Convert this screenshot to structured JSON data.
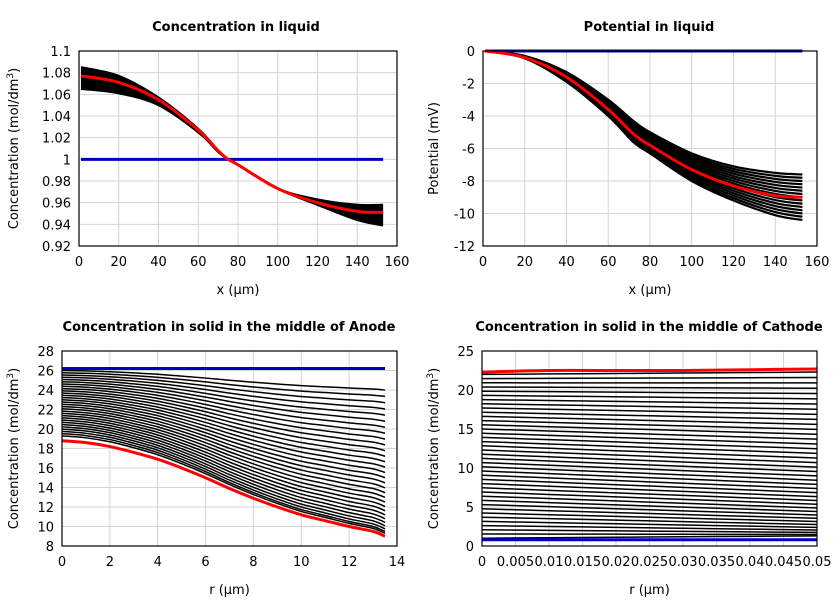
{
  "chart_data": [
    {
      "type": "line",
      "title": "Concentration in liquid",
      "xlabel": "x (µm)",
      "ylabel": {
        "main": "Concentration (mol/dm",
        "sup": "3",
        "end": ")"
      },
      "xlim": [
        0,
        160
      ],
      "ylim": [
        0.92,
        1.1
      ],
      "xticks": [
        "0",
        "20",
        "40",
        "60",
        "80",
        "100",
        "120",
        "140",
        "160"
      ],
      "yticks": [
        "0.92",
        "0.94",
        "0.96",
        "0.98",
        "1",
        "1.02",
        "1.04",
        "1.06",
        "1.08",
        "1.1"
      ],
      "xtick_values": [
        0,
        20,
        40,
        60,
        80,
        100,
        120,
        140,
        160
      ],
      "ytick_values": [
        0.92,
        0.94,
        0.96,
        0.98,
        1,
        1.02,
        1.04,
        1.06,
        1.08,
        1.1
      ],
      "grid": true,
      "x": [
        1,
        20,
        40,
        60,
        70,
        75,
        80,
        100,
        120,
        140,
        153
      ],
      "series": [
        {
          "color": "#0000c0",
          "values": [
            1,
            1,
            1,
            1,
            1,
            1,
            1,
            1,
            1,
            1,
            1
          ]
        },
        {
          "color": "#ff0000",
          "values": [
            1.077,
            1.071,
            1.055,
            1.027,
            1.008,
            1.0,
            0.995,
            0.973,
            0.96,
            0.952,
            0.951
          ]
        }
      ],
      "black_band": {
        "upper": [
          1.085,
          1.077,
          1.057,
          1.028,
          1.008,
          1.0,
          0.995,
          0.973,
          0.963,
          0.958,
          0.958
        ],
        "lower": [
          1.065,
          1.061,
          1.05,
          1.025,
          1.007,
          1.0,
          0.995,
          0.973,
          0.958,
          0.944,
          0.939
        ]
      }
    },
    {
      "type": "line",
      "title": "Potential in liquid",
      "xlabel": "x (µm)",
      "ylabel": {
        "main": "Potential (mV)",
        "sup": "",
        "end": ""
      },
      "xlim": [
        0,
        160
      ],
      "ylim": [
        -12,
        0
      ],
      "xticks": [
        "0",
        "20",
        "40",
        "60",
        "80",
        "100",
        "120",
        "140",
        "160"
      ],
      "yticks": [
        "-12",
        "-10",
        "-8",
        "-6",
        "-4",
        "-2",
        "0"
      ],
      "xtick_values": [
        0,
        20,
        40,
        60,
        80,
        100,
        120,
        140,
        160
      ],
      "ytick_values": [
        -12,
        -10,
        -8,
        -6,
        -4,
        -2,
        0
      ],
      "grid": true,
      "x": [
        1,
        20,
        40,
        60,
        72,
        80,
        100,
        120,
        140,
        153
      ],
      "series": [
        {
          "color": "#0000c0",
          "values": [
            0,
            0,
            0,
            0,
            0,
            0,
            0,
            0,
            0,
            0
          ]
        },
        {
          "color": "#ff0000",
          "values": [
            0,
            -0.4,
            -1.6,
            -3.6,
            -5.1,
            -5.8,
            -7.3,
            -8.3,
            -8.9,
            -9.0
          ]
        }
      ],
      "black_band": {
        "upper": [
          0,
          -0.3,
          -1.3,
          -3.0,
          -4.3,
          -5.0,
          -6.3,
          -7.1,
          -7.5,
          -7.6
        ],
        "lower": [
          0,
          -0.45,
          -1.9,
          -4.0,
          -5.6,
          -6.3,
          -8.0,
          -9.2,
          -10.1,
          -10.4
        ]
      }
    },
    {
      "type": "line",
      "title": "Concentration in solid in the middle of Anode",
      "xlabel": "r (µm)",
      "ylabel": {
        "main": "Concentration (mol/dm",
        "sup": "3",
        "end": ")"
      },
      "xlim": [
        0,
        14
      ],
      "ylim": [
        8,
        28
      ],
      "xticks": [
        "0",
        "2",
        "4",
        "6",
        "8",
        "10",
        "12",
        "14"
      ],
      "yticks": [
        "8",
        "10",
        "12",
        "14",
        "16",
        "18",
        "20",
        "22",
        "24",
        "26",
        "28"
      ],
      "xtick_values": [
        0,
        2,
        4,
        6,
        8,
        10,
        12,
        14
      ],
      "ytick_values": [
        8,
        10,
        12,
        14,
        16,
        18,
        20,
        22,
        24,
        26,
        28
      ],
      "grid": true,
      "x": [
        0,
        1,
        2,
        3,
        4,
        5,
        6,
        7,
        8,
        9,
        10,
        11,
        12,
        13,
        13.5
      ],
      "series": [
        {
          "color": "#0000c0",
          "values": [
            26.2,
            26.2,
            26.2,
            26.2,
            26.2,
            26.2,
            26.2,
            26.2,
            26.2,
            26.2,
            26.2,
            26.2,
            26.2,
            26.2,
            26.2
          ]
        },
        {
          "color": "#ff0000",
          "values": [
            18.8,
            18.6,
            18.2,
            17.6,
            16.9,
            16.0,
            15.0,
            13.9,
            12.9,
            12.0,
            11.2,
            10.6,
            10.0,
            9.5,
            9.0
          ]
        }
      ],
      "black_family": {
        "start_range": [
          19.3,
          26.0
        ],
        "end_range": [
          9.3,
          24.0
        ],
        "count": 30
      }
    },
    {
      "type": "line",
      "title": "Concentration in solid in the middle of Cathode",
      "xlabel": "r (µm)",
      "ylabel": {
        "main": "Concentration (mol/dm",
        "sup": "3",
        "end": ")"
      },
      "xlim": [
        0,
        0.05
      ],
      "ylim": [
        0,
        25
      ],
      "xticks": [
        "0",
        "0.005",
        "0.01",
        "0.015",
        "0.02",
        "0.025",
        "0.03",
        "0.035",
        "0.04",
        "0.045",
        "0.05"
      ],
      "yticks": [
        "0",
        "5",
        "10",
        "15",
        "20",
        "25"
      ],
      "xtick_values": [
        0,
        0.005,
        0.01,
        0.015,
        0.02,
        0.025,
        0.03,
        0.035,
        0.04,
        0.045,
        0.05
      ],
      "ytick_values": [
        0,
        5,
        10,
        15,
        20,
        25
      ],
      "grid": true,
      "x": [
        0,
        0.01,
        0.02,
        0.03,
        0.04,
        0.05
      ],
      "series": [
        {
          "color": "#0000c0",
          "values": [
            0.8,
            0.8,
            0.8,
            0.8,
            0.8,
            0.8
          ]
        },
        {
          "color": "#ff0000",
          "values": [
            22.3,
            22.5,
            22.5,
            22.5,
            22.6,
            22.7
          ]
        }
      ],
      "black_family": {
        "start_range": [
          1.0,
          22.0
        ],
        "end_range": [
          1.3,
          22.3
        ],
        "count": 40
      }
    }
  ]
}
